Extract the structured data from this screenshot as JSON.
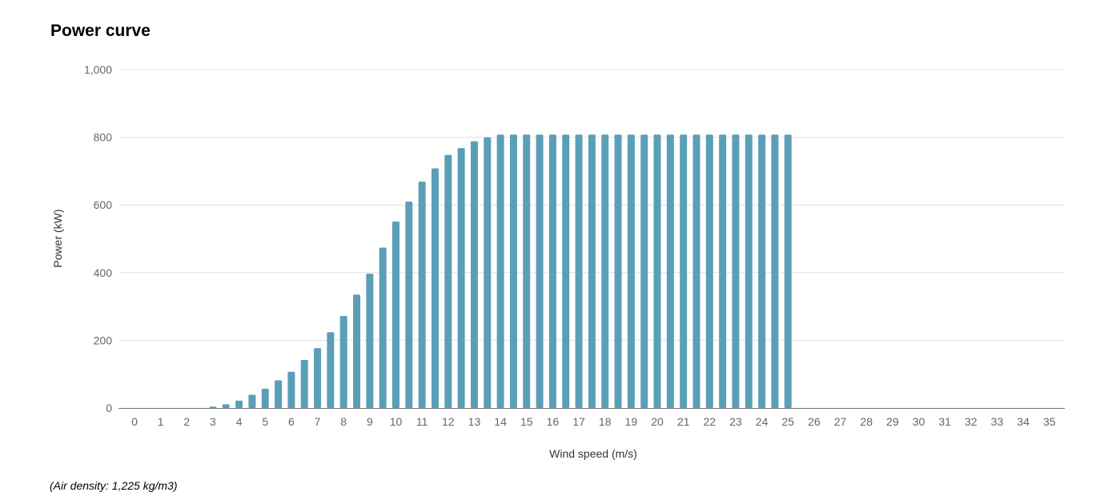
{
  "page": {
    "title": "Power curve",
    "footnote": "(Air density: 1,225 kg/m3)"
  },
  "chart_data": {
    "type": "bar",
    "title": "Power curve",
    "xlabel": "Wind speed (m/s)",
    "ylabel": "Power (kW)",
    "ylim": [
      0,
      1000
    ],
    "y_ticks": [
      0,
      200,
      400,
      600,
      800,
      1000
    ],
    "y_tick_labels": [
      "0",
      "200",
      "400",
      "600",
      "800",
      "1,000"
    ],
    "x_ticks": [
      0,
      1,
      2,
      3,
      4,
      5,
      6,
      7,
      8,
      9,
      10,
      11,
      12,
      13,
      14,
      15,
      16,
      17,
      18,
      19,
      20,
      21,
      22,
      23,
      24,
      25,
      26,
      27,
      28,
      29,
      30,
      31,
      32,
      33,
      34,
      35
    ],
    "x_range": [
      -0.5,
      35.5
    ],
    "grid": true,
    "bar_color": "#5b9fb7",
    "x": [
      3,
      3.5,
      4,
      4.5,
      5,
      5.5,
      6,
      6.5,
      7,
      7.5,
      8,
      8.5,
      9,
      9.5,
      10,
      10.5,
      11,
      11.5,
      12,
      12.5,
      13,
      13.5,
      14,
      14.5,
      15,
      15.5,
      16,
      16.5,
      17,
      17.5,
      18,
      18.5,
      19,
      19.5,
      20,
      20.5,
      21,
      21.5,
      22,
      22.5,
      23,
      23.5,
      24,
      24.5,
      25
    ],
    "values": [
      4,
      11,
      22,
      39,
      57,
      82,
      107,
      142,
      177,
      224,
      272,
      335,
      397,
      474,
      551,
      610,
      669,
      708,
      748,
      768,
      788,
      800,
      808,
      808,
      808,
      808,
      808,
      808,
      808,
      808,
      808,
      808,
      808,
      808,
      808,
      808,
      808,
      808,
      808,
      808,
      808,
      808,
      808,
      808,
      808
    ]
  }
}
